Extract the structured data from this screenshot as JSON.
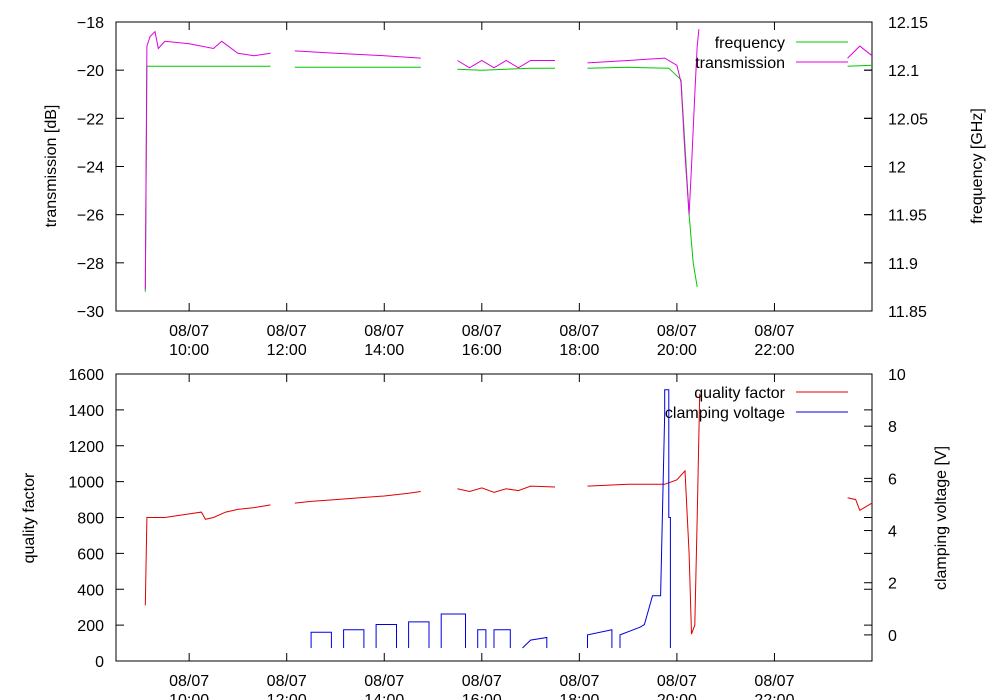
{
  "colors": {
    "frequency": "#00c800",
    "transmission": "#e000e0",
    "quality_factor": "#e00000",
    "clamping_voltage": "#0000e0"
  },
  "x_ticks": [
    {
      "date": "08/07",
      "time": "10:00"
    },
    {
      "date": "08/07",
      "time": "12:00"
    },
    {
      "date": "08/07",
      "time": "14:00"
    },
    {
      "date": "08/07",
      "time": "16:00"
    },
    {
      "date": "08/07",
      "time": "18:00"
    },
    {
      "date": "08/07",
      "time": "20:00"
    },
    {
      "date": "08/07",
      "time": "22:00"
    }
  ],
  "chart_data": [
    {
      "type": "line",
      "xlabel": "",
      "xlim": [
        "08:30",
        "24:00"
      ],
      "y_left": {
        "label": "transmission [dB]",
        "range": [
          -30,
          -18
        ],
        "ticks": [
          "-30",
          "-28",
          "-26",
          "-24",
          "-22",
          "-20",
          "-18"
        ]
      },
      "y_right": {
        "label": "frequency [GHz]",
        "range": [
          11.85,
          12.15
        ],
        "ticks": [
          "11.85",
          "11.9",
          "11.95",
          "12",
          "12.05",
          "12.1",
          "12.15"
        ]
      },
      "legend_position": "top-right",
      "series": [
        {
          "name": "frequency",
          "axis": "right",
          "segments": [
            [
              [
                "09:06",
                11.87
              ],
              [
                "09:08",
                12.104
              ],
              [
                "10:00",
                12.104
              ],
              [
                "11:00",
                12.104
              ],
              [
                "11:40",
                12.104
              ]
            ],
            [
              [
                "12:10",
                12.103
              ],
              [
                "13:00",
                12.103
              ],
              [
                "14:00",
                12.103
              ],
              [
                "14:45",
                12.103
              ]
            ],
            [
              [
                "15:30",
                12.101
              ],
              [
                "16:00",
                12.1
              ],
              [
                "16:30",
                12.101
              ],
              [
                "17:00",
                12.102
              ],
              [
                "17:30",
                12.102
              ]
            ],
            [
              [
                "18:10",
                12.102
              ],
              [
                "19:00",
                12.103
              ],
              [
                "19:50",
                12.102
              ],
              [
                "20:05",
                12.09
              ],
              [
                "20:15",
                11.95
              ],
              [
                "20:20",
                11.9
              ],
              [
                "20:25",
                11.875
              ]
            ],
            [
              [
                "23:30",
                12.104
              ],
              [
                "24:00",
                12.105
              ]
            ]
          ]
        },
        {
          "name": "transmission",
          "axis": "left",
          "segments": [
            [
              [
                "09:06",
                -29.1
              ],
              [
                "09:08",
                -19.0
              ],
              [
                "09:12",
                -18.6
              ],
              [
                "09:18",
                -18.4
              ],
              [
                "09:22",
                -19.1
              ],
              [
                "09:30",
                -18.8
              ],
              [
                "10:00",
                -18.9
              ],
              [
                "10:30",
                -19.1
              ],
              [
                "10:40",
                -18.8
              ],
              [
                "11:00",
                -19.3
              ],
              [
                "11:20",
                -19.4
              ],
              [
                "11:40",
                -19.3
              ]
            ],
            [
              [
                "12:10",
                -19.2
              ],
              [
                "13:00",
                -19.3
              ],
              [
                "14:00",
                -19.4
              ],
              [
                "14:45",
                -19.5
              ]
            ],
            [
              [
                "15:30",
                -19.6
              ],
              [
                "15:45",
                -19.9
              ],
              [
                "16:00",
                -19.6
              ],
              [
                "16:15",
                -19.9
              ],
              [
                "16:30",
                -19.6
              ],
              [
                "16:45",
                -19.9
              ],
              [
                "17:00",
                -19.6
              ],
              [
                "17:30",
                -19.6
              ]
            ],
            [
              [
                "18:10",
                -19.7
              ],
              [
                "19:00",
                -19.6
              ],
              [
                "19:45",
                -19.5
              ],
              [
                "20:00",
                -19.8
              ],
              [
                "20:05",
                -20.5
              ],
              [
                "20:10",
                -23.5
              ],
              [
                "20:15",
                -26.0
              ],
              [
                "20:18",
                -24.0
              ],
              [
                "20:22",
                -21.0
              ],
              [
                "20:25",
                -19.0
              ],
              [
                "20:27",
                -18.3
              ]
            ],
            [
              [
                "23:30",
                -19.5
              ],
              [
                "23:45",
                -19.0
              ],
              [
                "24:00",
                -19.4
              ]
            ]
          ]
        }
      ]
    },
    {
      "type": "line",
      "xlabel": "",
      "xlim": [
        "08:30",
        "24:00"
      ],
      "y_left": {
        "label": "quality factor",
        "range": [
          0,
          1600
        ],
        "ticks": [
          "0",
          "200",
          "400",
          "600",
          "800",
          "1000",
          "1200",
          "1400",
          "1600"
        ]
      },
      "y_right": {
        "label": "clamping voltage [V]",
        "range": [
          -1,
          10
        ],
        "ticks": [
          "0",
          "2",
          "4",
          "6",
          "8",
          "10"
        ]
      },
      "legend_position": "top-right",
      "series": [
        {
          "name": "quality factor",
          "axis": "left",
          "segments": [
            [
              [
                "09:06",
                310
              ],
              [
                "09:08",
                800
              ],
              [
                "09:30",
                800
              ],
              [
                "10:00",
                820
              ],
              [
                "10:15",
                830
              ],
              [
                "10:20",
                790
              ],
              [
                "10:30",
                800
              ],
              [
                "10:45",
                830
              ],
              [
                "11:00",
                845
              ],
              [
                "11:20",
                855
              ],
              [
                "11:40",
                870
              ]
            ],
            [
              [
                "12:10",
                880
              ],
              [
                "12:30",
                890
              ],
              [
                "13:00",
                900
              ],
              [
                "13:30",
                910
              ],
              [
                "14:00",
                920
              ],
              [
                "14:30",
                935
              ],
              [
                "14:45",
                945
              ]
            ],
            [
              [
                "15:30",
                960
              ],
              [
                "15:45",
                945
              ],
              [
                "16:00",
                965
              ],
              [
                "16:15",
                940
              ],
              [
                "16:30",
                960
              ],
              [
                "16:45",
                950
              ],
              [
                "17:00",
                975
              ],
              [
                "17:30",
                970
              ]
            ],
            [
              [
                "18:10",
                975
              ],
              [
                "19:00",
                985
              ],
              [
                "19:45",
                985
              ],
              [
                "20:00",
                1010
              ],
              [
                "20:10",
                1060
              ],
              [
                "20:15",
                600
              ],
              [
                "20:18",
                150
              ],
              [
                "20:22",
                200
              ],
              [
                "20:25",
                800
              ],
              [
                "20:28",
                1490
              ]
            ],
            [
              [
                "23:30",
                910
              ],
              [
                "23:40",
                900
              ],
              [
                "23:45",
                840
              ],
              [
                "24:00",
                880
              ]
            ]
          ]
        },
        {
          "name": "clamping voltage",
          "axis": "right",
          "segments": [
            [
              [
                "12:30",
                -0.5
              ],
              [
                "12:30",
                0.1
              ],
              [
                "12:55",
                0.1
              ],
              [
                "12:55",
                -0.5
              ]
            ],
            [
              [
                "13:10",
                -0.5
              ],
              [
                "13:10",
                0.2
              ],
              [
                "13:35",
                0.2
              ],
              [
                "13:35",
                -0.5
              ]
            ],
            [
              [
                "13:50",
                -0.5
              ],
              [
                "13:50",
                0.4
              ],
              [
                "14:15",
                0.4
              ],
              [
                "14:15",
                -0.5
              ]
            ],
            [
              [
                "14:30",
                -0.5
              ],
              [
                "14:30",
                0.5
              ],
              [
                "14:55",
                0.5
              ],
              [
                "14:55",
                -0.5
              ]
            ],
            [
              [
                "15:10",
                -0.5
              ],
              [
                "15:10",
                0.8
              ],
              [
                "15:40",
                0.8
              ],
              [
                "15:40",
                -0.5
              ]
            ],
            [
              [
                "15:55",
                -0.5
              ],
              [
                "15:55",
                0.2
              ],
              [
                "16:05",
                0.2
              ],
              [
                "16:05",
                -0.5
              ]
            ],
            [
              [
                "16:15",
                -0.5
              ],
              [
                "16:15",
                0.2
              ],
              [
                "16:35",
                0.2
              ],
              [
                "16:35",
                -0.5
              ]
            ],
            [
              [
                "16:50",
                -0.5
              ],
              [
                "16:50",
                -0.5
              ],
              [
                "17:00",
                -0.2
              ],
              [
                "17:20",
                -0.1
              ],
              [
                "17:20",
                -0.5
              ]
            ],
            [
              [
                "18:10",
                -0.5
              ],
              [
                "18:10",
                0.0
              ],
              [
                "18:40",
                0.2
              ],
              [
                "18:40",
                -0.5
              ]
            ],
            [
              [
                "18:50",
                -0.5
              ],
              [
                "18:50",
                0.0
              ],
              [
                "19:15",
                0.3
              ],
              [
                "19:20",
                0.4
              ],
              [
                "19:30",
                1.5
              ],
              [
                "19:40",
                1.5
              ],
              [
                "19:45",
                8.5
              ],
              [
                "19:45",
                9.4
              ],
              [
                "19:50",
                9.4
              ],
              [
                "19:50",
                4.5
              ],
              [
                "19:52",
                4.5
              ],
              [
                "19:52",
                -0.5
              ]
            ]
          ]
        }
      ]
    }
  ]
}
